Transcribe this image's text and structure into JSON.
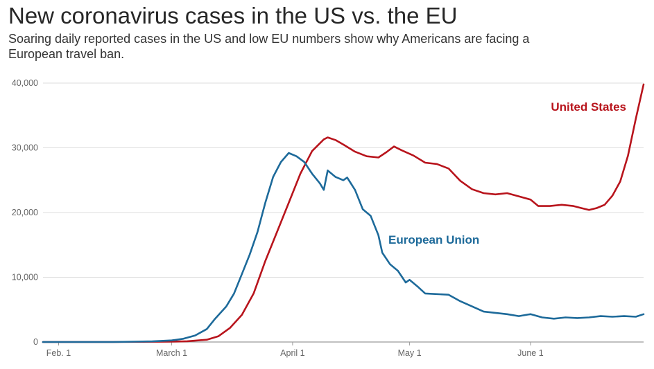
{
  "chart_data": {
    "type": "line",
    "title": "New coronavirus cases in the US vs. the EU",
    "subtitle": "Soaring daily reported cases in the US and low EU numbers show why Americans are facing a European travel ban.",
    "xlabel": "",
    "ylabel": "",
    "xlim": [
      "2020-01-28",
      "2020-06-30"
    ],
    "ylim": [
      0,
      40000
    ],
    "yticks": [
      0,
      10000,
      20000,
      30000,
      40000
    ],
    "ytick_labels": [
      "0",
      "10,000",
      "20,000",
      "30,000",
      "40,000"
    ],
    "xticks": [
      "2020-02-01",
      "2020-03-01",
      "2020-04-01",
      "2020-05-01",
      "2020-06-01"
    ],
    "xtick_labels": [
      "Feb. 1",
      "March 1",
      "April 1",
      "May 1",
      "June 1"
    ],
    "grid": true,
    "series": [
      {
        "name": "United States",
        "color": "#b8141c",
        "points": [
          [
            "2020-01-28",
            0
          ],
          [
            "2020-02-15",
            0
          ],
          [
            "2020-03-01",
            50
          ],
          [
            "2020-03-05",
            120
          ],
          [
            "2020-03-10",
            350
          ],
          [
            "2020-03-13",
            900
          ],
          [
            "2020-03-16",
            2200
          ],
          [
            "2020-03-19",
            4200
          ],
          [
            "2020-03-22",
            7500
          ],
          [
            "2020-03-25",
            12500
          ],
          [
            "2020-03-28",
            17000
          ],
          [
            "2020-03-31",
            21500
          ],
          [
            "2020-04-03",
            26000
          ],
          [
            "2020-04-06",
            29500
          ],
          [
            "2020-04-09",
            31300
          ],
          [
            "2020-04-10",
            31600
          ],
          [
            "2020-04-12",
            31200
          ],
          [
            "2020-04-14",
            30500
          ],
          [
            "2020-04-17",
            29400
          ],
          [
            "2020-04-20",
            28700
          ],
          [
            "2020-04-23",
            28500
          ],
          [
            "2020-04-25",
            29300
          ],
          [
            "2020-04-27",
            30200
          ],
          [
            "2020-04-29",
            29600
          ],
          [
            "2020-05-02",
            28800
          ],
          [
            "2020-05-05",
            27700
          ],
          [
            "2020-05-08",
            27500
          ],
          [
            "2020-05-11",
            26800
          ],
          [
            "2020-05-14",
            24900
          ],
          [
            "2020-05-17",
            23600
          ],
          [
            "2020-05-20",
            23000
          ],
          [
            "2020-05-23",
            22800
          ],
          [
            "2020-05-26",
            23000
          ],
          [
            "2020-05-29",
            22500
          ],
          [
            "2020-06-01",
            22000
          ],
          [
            "2020-06-03",
            21000
          ],
          [
            "2020-06-06",
            21000
          ],
          [
            "2020-06-09",
            21200
          ],
          [
            "2020-06-12",
            21000
          ],
          [
            "2020-06-14",
            20700
          ],
          [
            "2020-06-16",
            20400
          ],
          [
            "2020-06-18",
            20700
          ],
          [
            "2020-06-20",
            21200
          ],
          [
            "2020-06-22",
            22600
          ],
          [
            "2020-06-24",
            24800
          ],
          [
            "2020-06-26",
            28800
          ],
          [
            "2020-06-28",
            34500
          ],
          [
            "2020-06-30",
            39800
          ]
        ]
      },
      {
        "name": "European Union",
        "color": "#1d6a9a",
        "points": [
          [
            "2020-01-28",
            0
          ],
          [
            "2020-02-15",
            0
          ],
          [
            "2020-02-25",
            100
          ],
          [
            "2020-03-01",
            250
          ],
          [
            "2020-03-04",
            500
          ],
          [
            "2020-03-07",
            1000
          ],
          [
            "2020-03-10",
            2000
          ],
          [
            "2020-03-12",
            3500
          ],
          [
            "2020-03-15",
            5500
          ],
          [
            "2020-03-17",
            7500
          ],
          [
            "2020-03-19",
            10500
          ],
          [
            "2020-03-21",
            13500
          ],
          [
            "2020-03-23",
            17000
          ],
          [
            "2020-03-25",
            21500
          ],
          [
            "2020-03-27",
            25500
          ],
          [
            "2020-03-29",
            27800
          ],
          [
            "2020-03-31",
            29200
          ],
          [
            "2020-04-02",
            28700
          ],
          [
            "2020-04-04",
            27800
          ],
          [
            "2020-04-06",
            26000
          ],
          [
            "2020-04-08",
            24500
          ],
          [
            "2020-04-09",
            23500
          ],
          [
            "2020-04-10",
            26500
          ],
          [
            "2020-04-12",
            25500
          ],
          [
            "2020-04-14",
            25000
          ],
          [
            "2020-04-15",
            25400
          ],
          [
            "2020-04-17",
            23500
          ],
          [
            "2020-04-19",
            20500
          ],
          [
            "2020-04-21",
            19500
          ],
          [
            "2020-04-23",
            16500
          ],
          [
            "2020-04-24",
            13800
          ],
          [
            "2020-04-26",
            12000
          ],
          [
            "2020-04-28",
            11000
          ],
          [
            "2020-04-30",
            9200
          ],
          [
            "2020-05-01",
            9600
          ],
          [
            "2020-05-03",
            8600
          ],
          [
            "2020-05-05",
            7500
          ],
          [
            "2020-05-08",
            7400
          ],
          [
            "2020-05-11",
            7300
          ],
          [
            "2020-05-14",
            6300
          ],
          [
            "2020-05-17",
            5500
          ],
          [
            "2020-05-20",
            4700
          ],
          [
            "2020-05-23",
            4500
          ],
          [
            "2020-05-26",
            4300
          ],
          [
            "2020-05-29",
            4000
          ],
          [
            "2020-06-01",
            4300
          ],
          [
            "2020-06-04",
            3800
          ],
          [
            "2020-06-07",
            3600
          ],
          [
            "2020-06-10",
            3800
          ],
          [
            "2020-06-13",
            3700
          ],
          [
            "2020-06-16",
            3800
          ],
          [
            "2020-06-19",
            4000
          ],
          [
            "2020-06-22",
            3900
          ],
          [
            "2020-06-25",
            4000
          ],
          [
            "2020-06-28",
            3900
          ],
          [
            "2020-06-30",
            4300
          ]
        ]
      }
    ]
  }
}
